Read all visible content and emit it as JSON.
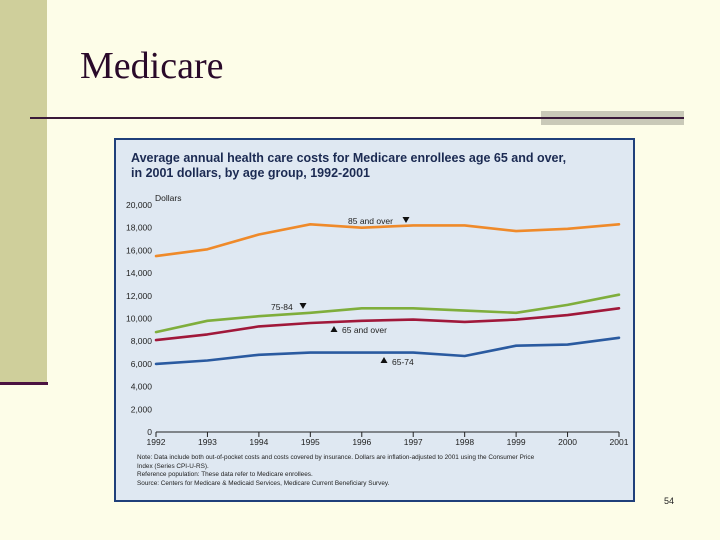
{
  "slide": {
    "title": "Medicare",
    "page_number": "54"
  },
  "chart_data": {
    "type": "line",
    "title_line1": "Average annual health care costs for Medicare enrollees age 65 and over,",
    "title_line2": "in 2001 dollars, by age group, 1992-2001",
    "ylabel": "Dollars",
    "xlabel": "",
    "ylim": [
      0,
      20000
    ],
    "y_ticks": [
      0,
      2000,
      4000,
      6000,
      8000,
      10000,
      12000,
      14000,
      16000,
      18000,
      20000
    ],
    "y_tick_labels": [
      "0",
      "2,000",
      "4,000",
      "6,000",
      "8,000",
      "10,000",
      "12,000",
      "14,000",
      "16,000",
      "18,000",
      "20,000"
    ],
    "x": [
      "1992",
      "1993",
      "1994",
      "1995",
      "1996",
      "1997",
      "1998",
      "1999",
      "2000",
      "2001"
    ],
    "grid": false,
    "series": [
      {
        "name": "85 and over",
        "label": "85 and over",
        "arrow": "down",
        "color": "#ef8a2a",
        "values": [
          15500,
          16100,
          17400,
          18300,
          18000,
          18200,
          18200,
          17700,
          17900,
          18300
        ]
      },
      {
        "name": "75-84",
        "label": "75-84",
        "arrow": "down",
        "color": "#7fae3c",
        "values": [
          8800,
          9800,
          10200,
          10500,
          10900,
          10900,
          10700,
          10500,
          11200,
          12100
        ]
      },
      {
        "name": "65 and over",
        "label": "65 and over",
        "arrow": "up",
        "color": "#a0183a",
        "values": [
          8100,
          8600,
          9300,
          9600,
          9800,
          9900,
          9700,
          9900,
          10300,
          10900
        ]
      },
      {
        "name": "65-74",
        "label": "65-74",
        "arrow": "up",
        "color": "#2a5aa0",
        "values": [
          6000,
          6300,
          6800,
          7000,
          7000,
          7000,
          6700,
          7600,
          7700,
          8300
        ]
      }
    ],
    "notes": [
      "Note: Data include both out-of-pocket costs and costs covered by insurance. Dollars are inflation-adjusted to 2001 using the Consumer Price",
      "Index (Series CPI-U-RS).",
      "Reference population: These data refer to Medicare enrollees.",
      "Source: Centers for Medicare & Medicaid Services, Medicare Current Beneficiary Survey."
    ]
  }
}
